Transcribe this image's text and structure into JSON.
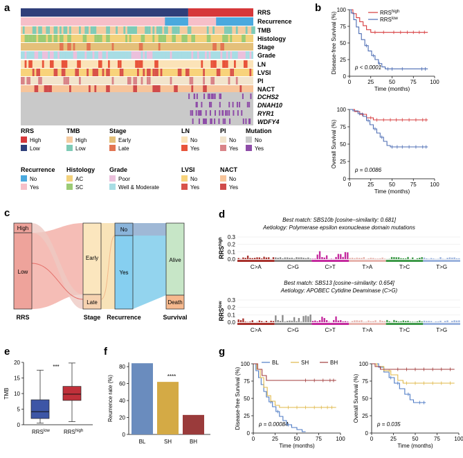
{
  "panels": {
    "a": "a",
    "b": "b",
    "c": "c",
    "d": "d",
    "e": "e",
    "f": "f",
    "g": "g"
  },
  "heatmap": {
    "tracks": [
      "RRS",
      "Recurrence",
      "TMB",
      "Histology",
      "Stage",
      "Grade",
      "LN",
      "LVSI",
      "PI",
      "NACT"
    ],
    "genes": [
      "DCHS2",
      "DNAH10",
      "RYR1",
      "WDFY4"
    ],
    "legend_groups": [
      {
        "title": "RRS",
        "items": [
          {
            "label": "High",
            "color": "#D6383A"
          },
          {
            "label": "Low",
            "color": "#2F3F7A"
          }
        ]
      },
      {
        "title": "TMB",
        "items": [
          {
            "label": "High",
            "color": "#F5CBA0"
          },
          {
            "label": "Low",
            "color": "#7FCBB6"
          }
        ]
      },
      {
        "title": "Stage",
        "items": [
          {
            "label": "Early",
            "color": "#E4C07A"
          },
          {
            "label": "Late",
            "color": "#E27552"
          }
        ]
      },
      {
        "title": "LN",
        "items": [
          {
            "label": "No",
            "color": "#FBE3B8"
          },
          {
            "label": "Yes",
            "color": "#E8543A"
          }
        ]
      },
      {
        "title": "PI",
        "items": [
          {
            "label": "No",
            "color": "#F2E4CC"
          },
          {
            "label": "Yes",
            "color": "#D98488"
          }
        ]
      },
      {
        "title": "Mutation",
        "items": [
          {
            "label": "No",
            "color": "#C9C9C9"
          },
          {
            "label": "Yes",
            "color": "#8E4CA8"
          }
        ]
      },
      {
        "title": "Recurrence",
        "items": [
          {
            "label": "No",
            "color": "#4AA9DE"
          },
          {
            "label": "Yes",
            "color": "#F6BFC8"
          }
        ]
      },
      {
        "title": "Histology",
        "items": [
          {
            "label": "AC",
            "color": "#F3D27C"
          },
          {
            "label": "SC",
            "color": "#9CCB75"
          }
        ]
      },
      {
        "title": "Grade",
        "items": [
          {
            "label": "Poor",
            "color": "#EBC0DC"
          },
          {
            "label": "Well & Moderate",
            "color": "#A7DDE4"
          }
        ]
      },
      {
        "title": "LVSI",
        "items": [
          {
            "label": "No",
            "color": "#F8D37B"
          },
          {
            "label": "Yes",
            "color": "#D9534A"
          }
        ]
      },
      {
        "title": "NACT",
        "items": [
          {
            "label": "No",
            "color": "#F7C49A"
          },
          {
            "label": "Yes",
            "color": "#D04B4B"
          }
        ]
      }
    ]
  },
  "km_b": {
    "xlabel": "Time (months)",
    "xticks": [
      "0",
      "25",
      "50",
      "75",
      "100"
    ],
    "yticks": [
      "0",
      "25",
      "50",
      "75",
      "100"
    ],
    "legend_high": "RRS",
    "legend_high_sup": "high",
    "legend_low": "RRS",
    "legend_low_sup": "low",
    "dfs_ylabel": "Disease-free Survival (%)",
    "dfs_p": "p < 0.0001",
    "os_ylabel": "Overall Survival (%)",
    "os_p": "p = 0.0086",
    "color_high": "#D6383A",
    "color_low": "#4C6CB3"
  },
  "sankey": {
    "axes": [
      "RRS",
      "Stage",
      "Recurrence",
      "Survival"
    ],
    "nodes": {
      "high": "High",
      "low": "Low",
      "early": "Early",
      "late": "Late",
      "no": "No",
      "yes": "Yes",
      "alive": "Alive",
      "death": "Death"
    }
  },
  "signature": {
    "high_match": "Best match: SBS10b [cosine−similarity: 0.681]",
    "high_aetiology": "Aetiology: Polymerase epsilon exonuclease domain mutations",
    "low_match": "Best match: SBS13 [cosine−similarity: 0.654]",
    "low_aetiology": "Aetiology: APOBEC Cytidine Deaminase (C>G)",
    "ylabel_high": "RRS",
    "ylabel_high_sup": "high",
    "ylabel_low": "RRS",
    "ylabel_low_sup": "low",
    "yticks": [
      "0.3",
      "0.2",
      "0.1",
      "0.0"
    ],
    "classes": [
      "C>A",
      "C>G",
      "C>T",
      "T>A",
      "T>C",
      "T>G"
    ],
    "class_colors": [
      "#A8322D",
      "#8A8A8A",
      "#C42A9E",
      "#E8B5AF",
      "#3E9A49",
      "#9DB4DE"
    ]
  },
  "boxplot": {
    "ylabel": "TMB",
    "yticks": [
      "0",
      "5",
      "10",
      "15",
      "20"
    ],
    "groups": [
      "RRS",
      "RRS"
    ],
    "group_sups": [
      "low",
      "high"
    ],
    "signif": "***",
    "low": {
      "min": 0.5,
      "q1": 2,
      "median": 4.2,
      "q3": 8,
      "max": 17.5,
      "color": "#3D56A6"
    },
    "high": {
      "min": 1,
      "q1": 7.8,
      "median": 9.8,
      "q3": 12.3,
      "max": 19.8,
      "color": "#C0303A"
    }
  },
  "chart_data": {
    "type": "bar",
    "categories": [
      "BL",
      "SH",
      "BH"
    ],
    "values": [
      84,
      62,
      23
    ],
    "colors": [
      "#6A8CBE",
      "#D4AA45",
      "#9A3B3B"
    ],
    "title": "",
    "xlabel": "",
    "ylabel": "Reurrence rate (%)",
    "ylim": [
      0,
      85
    ],
    "yticks": [
      "0",
      "20",
      "40",
      "60",
      "80"
    ],
    "signif": "****"
  },
  "km_g": {
    "legend": [
      "BL",
      "SH",
      "BH"
    ],
    "colors": [
      "#4C7AC4",
      "#E0B84A",
      "#A03B3B"
    ],
    "xlabel": "Time (months)",
    "xticks": [
      "0",
      "25",
      "50",
      "75",
      "100"
    ],
    "yticks": [
      "0",
      "25",
      "50",
      "75",
      "100"
    ],
    "dfs_ylabel": "Disease-free Survival (%)",
    "dfs_p": "p = 0.00084",
    "os_ylabel": "Overall Survival (%)",
    "os_p": "p = 0.035"
  }
}
